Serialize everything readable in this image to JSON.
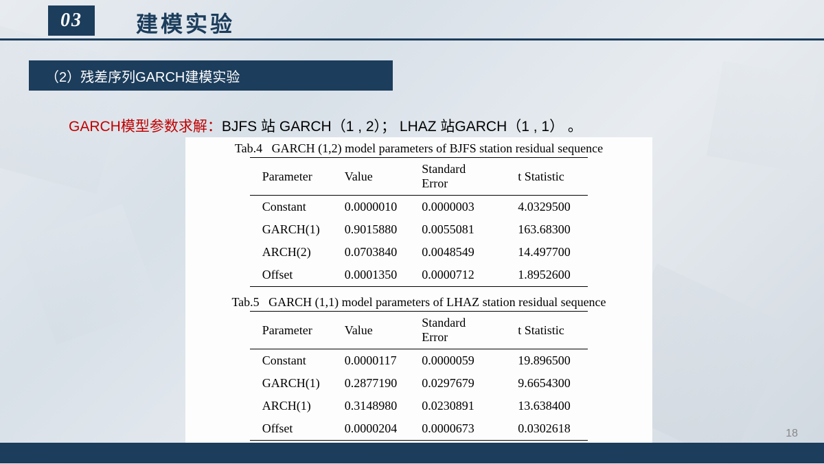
{
  "header": {
    "section_number": "03",
    "section_title": "建模实验"
  },
  "subtitle": "（2）残差序列GARCH建模实验",
  "body": {
    "red_part": "GARCH模型参数求解：",
    "black_part": "BJFS 站 GARCH（1 , 2）； LHAZ 站GARCH（1 , 1） 。"
  },
  "table4": {
    "label": "Tab.4",
    "caption": "GARCH (1,2) model parameters of BJFS station residual sequence",
    "columns": [
      "Parameter",
      "Value",
      "Standard Error",
      "t   Statistic"
    ],
    "rows": [
      [
        "Constant",
        "0.0000010",
        "0.0000003",
        "4.0329500"
      ],
      [
        "GARCH(1)",
        "0.9015880",
        "0.0055081",
        "163.68300"
      ],
      [
        "ARCH(2)",
        "0.0703840",
        "0.0048549",
        "14.497700"
      ],
      [
        "Offset",
        "0.0001350",
        "0.0000712",
        "1.8952600"
      ]
    ]
  },
  "table5": {
    "label": "Tab.5",
    "caption": "GARCH (1,1) model parameters of LHAZ station residual sequence",
    "columns": [
      "Parameter",
      "Value",
      "Standard Error",
      "t   Statistic"
    ],
    "rows": [
      [
        "Constant",
        "0.0000117",
        "0.0000059",
        "19.896500"
      ],
      [
        "GARCH(1)",
        "0.2877190",
        "0.0297679",
        "9.6654300"
      ],
      [
        "ARCH(1)",
        "0.3148980",
        "0.0230891",
        "13.638400"
      ],
      [
        "Offset",
        "0.0000204",
        "0.0000673",
        "0.0302618"
      ]
    ]
  },
  "page_number": "18",
  "colors": {
    "brand": "#1c3d5c",
    "accent_red": "#c00000",
    "bg_light": "#e8ecf0"
  }
}
